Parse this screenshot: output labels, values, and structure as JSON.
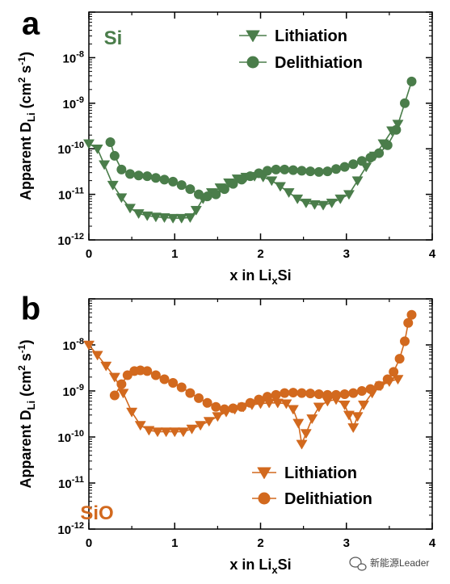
{
  "colors": {
    "Si": "#4a7d4a",
    "SiO": "#d2691e"
  },
  "watermark": {
    "icon": "wechat-icon",
    "text": "新能源Leader"
  },
  "chart_data": [
    {
      "panel": "a",
      "type": "line",
      "material_label": "Si",
      "xlabel": {
        "main": "x in Li",
        "sub": "x",
        "tail": "Si"
      },
      "ylabel": {
        "main": "Apparent D",
        "sub": "Li",
        "unit_open": " (cm",
        "sup1": "2",
        "unit_mid": " s",
        "sup2": "-1",
        "unit_close": ")"
      },
      "xlim": [
        0,
        4
      ],
      "ylim": [
        1e-12,
        1e-07
      ],
      "yscale": "log",
      "x_ticks": [
        "0",
        "1",
        "2",
        "3",
        "4"
      ],
      "y_ticks": [
        {
          "value": 1e-12,
          "base": "10",
          "exp": "-12"
        },
        {
          "value": 1e-11,
          "base": "10",
          "exp": "-11"
        },
        {
          "value": 1e-10,
          "base": "10",
          "exp": "-10"
        },
        {
          "value": 1e-09,
          "base": "10",
          "exp": "-9"
        },
        {
          "value": 1e-08,
          "base": "10",
          "exp": "-8"
        }
      ],
      "legend_position": "top-right",
      "series": [
        {
          "name": "Lithiation",
          "marker": "triangle-down",
          "points": [
            [
              0.0,
              1.3e-10
            ],
            [
              0.1,
              1e-10
            ],
            [
              0.18,
              4.5e-11
            ],
            [
              0.28,
              1.6e-11
            ],
            [
              0.38,
              8.5e-12
            ],
            [
              0.48,
              5e-12
            ],
            [
              0.58,
              3.8e-12
            ],
            [
              0.68,
              3.4e-12
            ],
            [
              0.78,
              3.2e-12
            ],
            [
              0.88,
              3.1e-12
            ],
            [
              0.98,
              3e-12
            ],
            [
              1.08,
              3e-12
            ],
            [
              1.18,
              3.1e-12
            ],
            [
              1.25,
              4.5e-12
            ],
            [
              1.33,
              8e-12
            ],
            [
              1.43,
              1.1e-11
            ],
            [
              1.53,
              1.4e-11
            ],
            [
              1.63,
              1.8e-11
            ],
            [
              1.73,
              2.2e-11
            ],
            [
              1.83,
              2.4e-11
            ],
            [
              1.93,
              2.5e-11
            ],
            [
              2.03,
              2.4e-11
            ],
            [
              2.13,
              2e-11
            ],
            [
              2.23,
              1.5e-11
            ],
            [
              2.33,
              1.1e-11
            ],
            [
              2.43,
              8e-12
            ],
            [
              2.53,
              6.5e-12
            ],
            [
              2.63,
              6e-12
            ],
            [
              2.73,
              5.8e-12
            ],
            [
              2.83,
              6.5e-12
            ],
            [
              2.93,
              8e-12
            ],
            [
              3.03,
              1e-11
            ],
            [
              3.13,
              2e-11
            ],
            [
              3.23,
              4e-11
            ],
            [
              3.33,
              7e-11
            ],
            [
              3.43,
              1.3e-10
            ],
            [
              3.53,
              2.5e-10
            ],
            [
              3.6,
              3.5e-10
            ]
          ]
        },
        {
          "name": "Delithiation",
          "marker": "circle",
          "points": [
            [
              0.25,
              1.4e-10
            ],
            [
              0.3,
              7e-11
            ],
            [
              0.38,
              3.5e-11
            ],
            [
              0.48,
              2.8e-11
            ],
            [
              0.58,
              2.6e-11
            ],
            [
              0.68,
              2.5e-11
            ],
            [
              0.78,
              2.3e-11
            ],
            [
              0.88,
              2.1e-11
            ],
            [
              0.98,
              1.9e-11
            ],
            [
              1.08,
              1.6e-11
            ],
            [
              1.18,
              1.3e-11
            ],
            [
              1.28,
              1e-11
            ],
            [
              1.38,
              9e-12
            ],
            [
              1.48,
              1e-11
            ],
            [
              1.58,
              1.3e-11
            ],
            [
              1.68,
              1.7e-11
            ],
            [
              1.78,
              2.1e-11
            ],
            [
              1.88,
              2.5e-11
            ],
            [
              1.98,
              2.9e-11
            ],
            [
              2.08,
              3.3e-11
            ],
            [
              2.18,
              3.5e-11
            ],
            [
              2.28,
              3.5e-11
            ],
            [
              2.38,
              3.4e-11
            ],
            [
              2.48,
              3.3e-11
            ],
            [
              2.58,
              3.2e-11
            ],
            [
              2.68,
              3.1e-11
            ],
            [
              2.78,
              3.2e-11
            ],
            [
              2.88,
              3.6e-11
            ],
            [
              2.98,
              4e-11
            ],
            [
              3.08,
              4.6e-11
            ],
            [
              3.18,
              5.4e-11
            ],
            [
              3.28,
              6.4e-11
            ],
            [
              3.38,
              8e-11
            ],
            [
              3.48,
              1.2e-10
            ],
            [
              3.58,
              2.6e-10
            ],
            [
              3.68,
              1e-09
            ],
            [
              3.76,
              3e-09
            ]
          ]
        }
      ]
    },
    {
      "panel": "b",
      "type": "line",
      "material_label": "SiO",
      "xlabel": {
        "main": "x in Li",
        "sub": "x",
        "tail": "Si"
      },
      "ylabel": {
        "main": "Apparent D",
        "sub": "Li",
        "unit_open": " (cm",
        "sup1": "2",
        "unit_mid": " s",
        "sup2": "-1",
        "unit_close": ")"
      },
      "xlim": [
        0,
        4
      ],
      "ylim": [
        1e-12,
        1e-07
      ],
      "yscale": "log",
      "x_ticks": [
        "0",
        "1",
        "2",
        "3",
        "4"
      ],
      "y_ticks": [
        {
          "value": 1e-12,
          "base": "10",
          "exp": "-12"
        },
        {
          "value": 1e-11,
          "base": "10",
          "exp": "-11"
        },
        {
          "value": 1e-10,
          "base": "10",
          "exp": "-10"
        },
        {
          "value": 1e-09,
          "base": "10",
          "exp": "-9"
        },
        {
          "value": 1e-08,
          "base": "10",
          "exp": "-8"
        }
      ],
      "legend_position": "bottom-right",
      "series": [
        {
          "name": "Lithiation",
          "marker": "triangle-down",
          "points": [
            [
              0.0,
              1e-08
            ],
            [
              0.1,
              6e-09
            ],
            [
              0.2,
              3.5e-09
            ],
            [
              0.3,
              2e-09
            ],
            [
              0.4,
              9e-10
            ],
            [
              0.5,
              3.5e-10
            ],
            [
              0.6,
              1.8e-10
            ],
            [
              0.7,
              1.4e-10
            ],
            [
              0.8,
              1.3e-10
            ],
            [
              0.9,
              1.3e-10
            ],
            [
              1.0,
              1.3e-10
            ],
            [
              1.1,
              1.3e-10
            ],
            [
              1.2,
              1.5e-10
            ],
            [
              1.3,
              1.8e-10
            ],
            [
              1.4,
              2.2e-10
            ],
            [
              1.5,
              2.8e-10
            ],
            [
              1.6,
              3.5e-10
            ],
            [
              1.7,
              4e-10
            ],
            [
              1.8,
              4.5e-10
            ],
            [
              1.9,
              5e-10
            ],
            [
              2.0,
              5.3e-10
            ],
            [
              2.1,
              5.5e-10
            ],
            [
              2.2,
              5.5e-10
            ],
            [
              2.3,
              5.3e-10
            ],
            [
              2.38,
              4e-10
            ],
            [
              2.44,
              2e-10
            ],
            [
              2.48,
              7e-11
            ],
            [
              2.53,
              1.2e-10
            ],
            [
              2.6,
              2.5e-10
            ],
            [
              2.68,
              4.5e-10
            ],
            [
              2.78,
              6e-10
            ],
            [
              2.88,
              6.5e-10
            ],
            [
              2.98,
              5e-10
            ],
            [
              3.03,
              3e-10
            ],
            [
              3.08,
              1.6e-10
            ],
            [
              3.13,
              2.8e-10
            ],
            [
              3.2,
              5e-10
            ],
            [
              3.3,
              9e-10
            ],
            [
              3.4,
              1.3e-09
            ],
            [
              3.5,
              1.6e-09
            ],
            [
              3.6,
              1.8e-09
            ]
          ]
        },
        {
          "name": "Delithiation",
          "marker": "circle",
          "points": [
            [
              0.3,
              8e-10
            ],
            [
              0.38,
              1.4e-09
            ],
            [
              0.45,
              2.2e-09
            ],
            [
              0.53,
              2.7e-09
            ],
            [
              0.6,
              2.8e-09
            ],
            [
              0.68,
              2.7e-09
            ],
            [
              0.78,
              2.2e-09
            ],
            [
              0.88,
              1.8e-09
            ],
            [
              0.98,
              1.5e-09
            ],
            [
              1.08,
              1.2e-09
            ],
            [
              1.18,
              9e-10
            ],
            [
              1.28,
              7e-10
            ],
            [
              1.38,
              5.5e-10
            ],
            [
              1.48,
              4.5e-10
            ],
            [
              1.58,
              4e-10
            ],
            [
              1.68,
              4.2e-10
            ],
            [
              1.78,
              4.5e-10
            ],
            [
              1.88,
              5.5e-10
            ],
            [
              1.98,
              6.5e-10
            ],
            [
              2.08,
              7.5e-10
            ],
            [
              2.18,
              8.2e-10
            ],
            [
              2.28,
              9e-10
            ],
            [
              2.38,
              9.2e-10
            ],
            [
              2.48,
              9e-10
            ],
            [
              2.58,
              8.8e-10
            ],
            [
              2.68,
              8.5e-10
            ],
            [
              2.78,
              8.2e-10
            ],
            [
              2.88,
              8.2e-10
            ],
            [
              2.98,
              8.5e-10
            ],
            [
              3.08,
              9e-10
            ],
            [
              3.18,
              1e-09
            ],
            [
              3.28,
              1.1e-09
            ],
            [
              3.38,
              1.3e-09
            ],
            [
              3.48,
              1.8e-09
            ],
            [
              3.55,
              2.6e-09
            ],
            [
              3.62,
              5e-09
            ],
            [
              3.68,
              1.2e-08
            ],
            [
              3.72,
              3e-08
            ],
            [
              3.76,
              4.5e-08
            ]
          ]
        }
      ]
    }
  ]
}
